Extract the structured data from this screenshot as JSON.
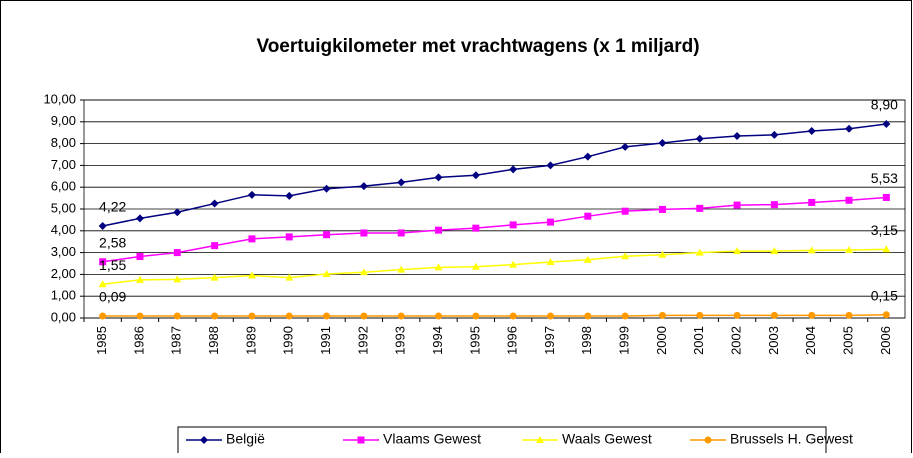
{
  "chart_data": {
    "type": "line",
    "title": "Voertuigkilometer met vrachtwagens (x 1 miljard)",
    "categories": [
      "1985",
      "1986",
      "1987",
      "1988",
      "1989",
      "1990",
      "1991",
      "1992",
      "1993",
      "1994",
      "1995",
      "1996",
      "1997",
      "1998",
      "1999",
      "2000",
      "2001",
      "2002",
      "2003",
      "2004",
      "2005",
      "2006"
    ],
    "ylim": [
      0,
      10
    ],
    "yticks": [
      {
        "value": 0,
        "label": "0,00"
      },
      {
        "value": 1,
        "label": "1,00"
      },
      {
        "value": 2,
        "label": "2,00"
      },
      {
        "value": 3,
        "label": "3,00"
      },
      {
        "value": 4,
        "label": "4,00"
      },
      {
        "value": 5,
        "label": "5,00"
      },
      {
        "value": 6,
        "label": "6,00"
      },
      {
        "value": 7,
        "label": "7,00"
      },
      {
        "value": 8,
        "label": "8,00"
      },
      {
        "value": 9,
        "label": "9,00"
      },
      {
        "value": 10,
        "label": "10,00"
      }
    ],
    "grid": true,
    "legend": "bottom",
    "series": [
      {
        "name": "België",
        "color": "#000080",
        "marker": "diamond",
        "values": [
          4.22,
          4.57,
          4.85,
          5.25,
          5.65,
          5.6,
          5.93,
          6.05,
          6.22,
          6.45,
          6.55,
          6.82,
          7.0,
          7.4,
          7.85,
          8.03,
          8.22,
          8.35,
          8.4,
          8.58,
          8.68,
          8.9
        ],
        "value_labels": [
          "4,22",
          null,
          null,
          null,
          null,
          null,
          null,
          null,
          null,
          null,
          null,
          null,
          null,
          null,
          null,
          null,
          null,
          null,
          null,
          null,
          null,
          "8,90"
        ]
      },
      {
        "name": "Vlaams Gewest",
        "color": "#ff00ff",
        "marker": "square",
        "values": [
          2.58,
          2.82,
          3.0,
          3.32,
          3.63,
          3.72,
          3.82,
          3.9,
          3.9,
          4.03,
          4.12,
          4.27,
          4.4,
          4.67,
          4.9,
          4.98,
          5.03,
          5.18,
          5.2,
          5.3,
          5.4,
          5.53
        ],
        "value_labels": [
          "2,58",
          null,
          null,
          null,
          null,
          null,
          null,
          null,
          null,
          null,
          null,
          null,
          null,
          null,
          null,
          null,
          null,
          null,
          null,
          null,
          null,
          "5,53"
        ]
      },
      {
        "name": "Waals Gewest",
        "color": "#ffff00",
        "marker": "triangle",
        "values": [
          1.55,
          1.75,
          1.77,
          1.85,
          1.95,
          1.85,
          2.02,
          2.1,
          2.22,
          2.32,
          2.35,
          2.45,
          2.57,
          2.67,
          2.83,
          2.9,
          3.0,
          3.07,
          3.07,
          3.1,
          3.12,
          3.15
        ],
        "value_labels": [
          "1,55",
          null,
          null,
          null,
          null,
          null,
          null,
          null,
          null,
          null,
          null,
          null,
          null,
          null,
          null,
          null,
          null,
          null,
          null,
          null,
          null,
          "3,15"
        ]
      },
      {
        "name": "Brussels H. Gewest",
        "color": "#ff9900",
        "marker": "circle",
        "values": [
          0.09,
          0.09,
          0.09,
          0.09,
          0.09,
          0.09,
          0.09,
          0.09,
          0.09,
          0.09,
          0.09,
          0.09,
          0.09,
          0.09,
          0.09,
          0.12,
          0.12,
          0.12,
          0.12,
          0.12,
          0.12,
          0.15
        ],
        "value_labels": [
          "0,09",
          null,
          null,
          null,
          null,
          null,
          null,
          null,
          null,
          null,
          null,
          null,
          null,
          null,
          null,
          null,
          null,
          null,
          null,
          null,
          null,
          "0,15"
        ]
      }
    ]
  }
}
